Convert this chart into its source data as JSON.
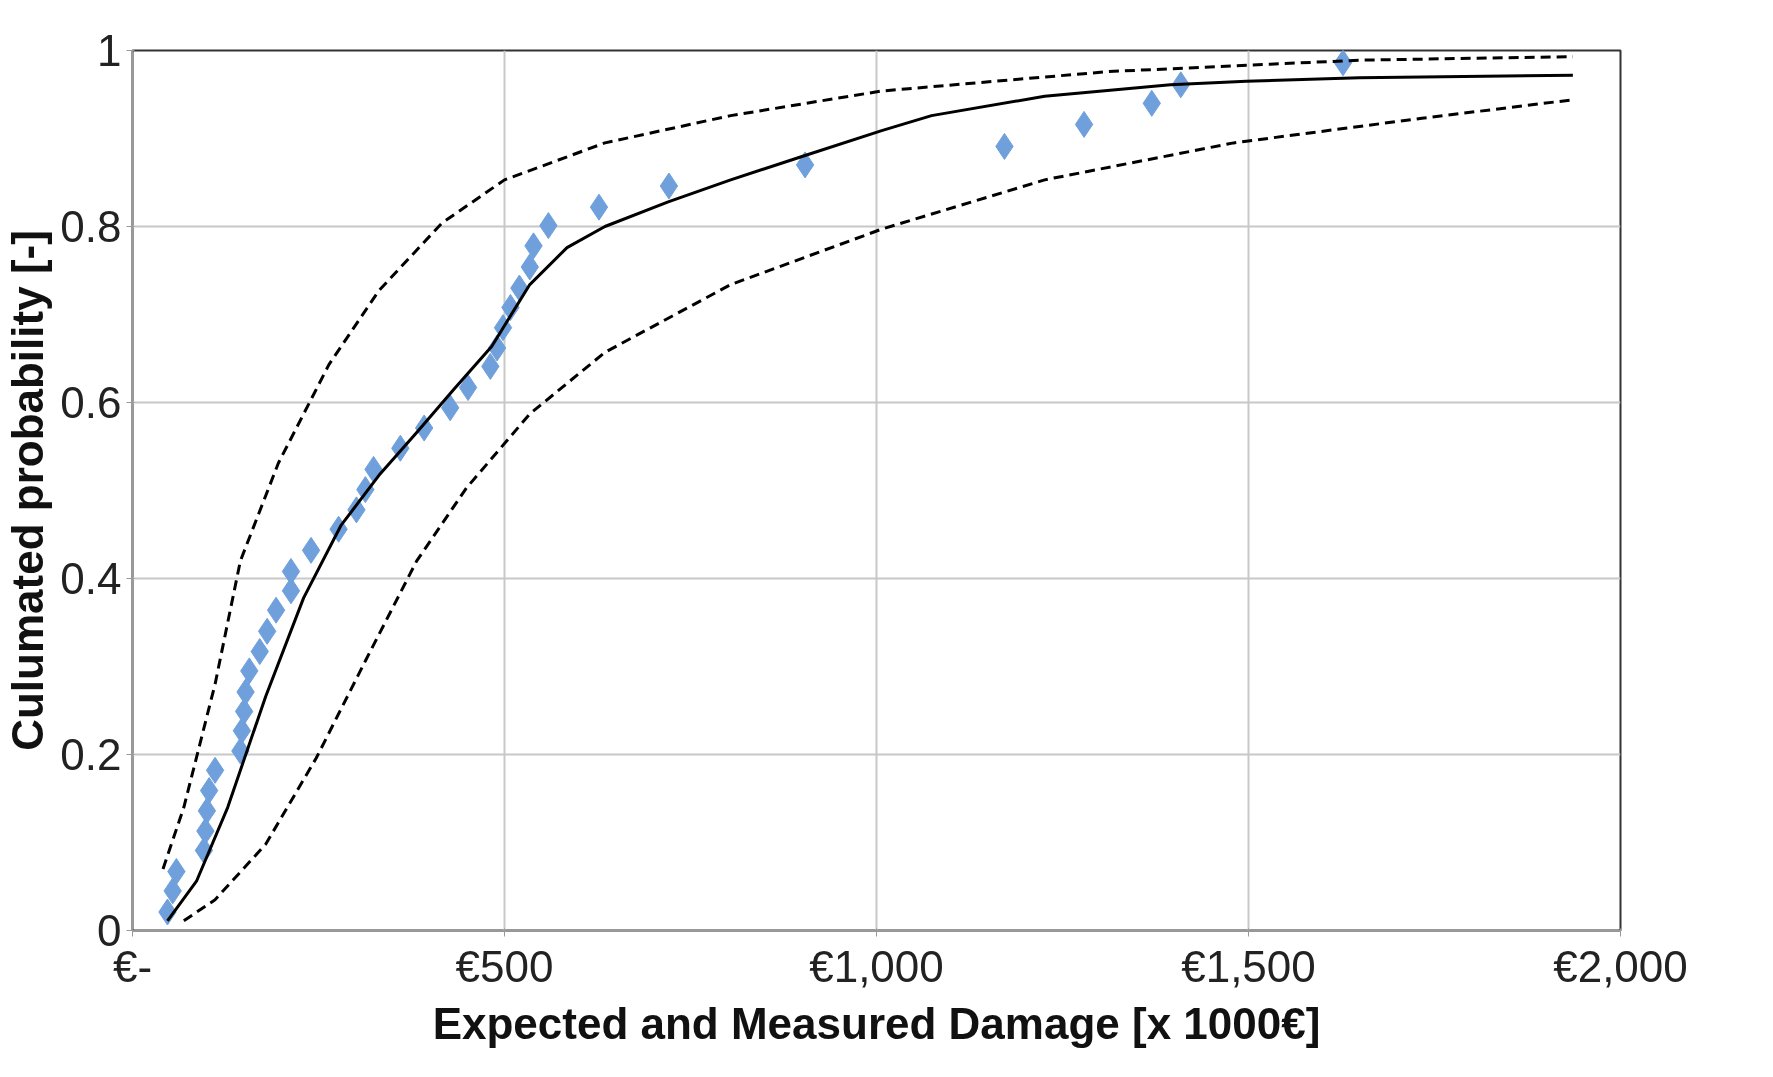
{
  "chart_data": {
    "type": "scatter",
    "xlabel": "Expected and Measured Damage [x 1000€]",
    "ylabel": "Culumated probability [-]",
    "xlim": [
      0,
      2000
    ],
    "xticks": [
      {
        "value": 0,
        "label": "€-"
      },
      {
        "value": 500,
        "label": "€500"
      },
      {
        "value": 1000,
        "label": "€1,000"
      },
      {
        "value": 1500,
        "label": "€1,500"
      },
      {
        "value": 2000,
        "label": "€2,000"
      }
    ],
    "ylim": [
      0,
      1
    ],
    "yticks": [
      0,
      0.2,
      0.4,
      0.6,
      0.8,
      1
    ],
    "grid": true,
    "series": [
      {
        "type": "line",
        "color": "#000000",
        "line_style": "solid",
        "marker": "none",
        "x": [
          47,
          86,
          128,
          179,
          230,
          280,
          331,
          382,
          432,
          483,
          534,
          584,
          635,
          720,
          804,
          905,
          1007,
          1074,
          1226,
          1395,
          1497,
          1649,
          1936
        ],
        "values": [
          0.011,
          0.056,
          0.14,
          0.266,
          0.378,
          0.46,
          0.517,
          0.566,
          0.615,
          0.664,
          0.734,
          0.776,
          0.8,
          0.828,
          0.853,
          0.881,
          0.909,
          0.926,
          0.948,
          0.961,
          0.965,
          0.969,
          0.972
        ]
      },
      {
        "type": "line",
        "color": "#000000",
        "line_style": "dashed",
        "marker": "none",
        "x": [
          41,
          69,
          111,
          145,
          196,
          264,
          331,
          416,
          500,
          635,
          804,
          1007,
          1311,
          1649,
          1936
        ],
        "values": [
          0.07,
          0.14,
          0.28,
          0.42,
          0.531,
          0.643,
          0.727,
          0.804,
          0.853,
          0.895,
          0.926,
          0.954,
          0.976,
          0.989,
          0.993
        ]
      },
      {
        "type": "line",
        "color": "#000000",
        "line_style": "dashed",
        "marker": "none",
        "x": [
          69,
          111,
          179,
          247,
          314,
          382,
          449,
          534,
          635,
          804,
          1007,
          1226,
          1480,
          1733,
          1936
        ],
        "values": [
          0.011,
          0.035,
          0.098,
          0.196,
          0.308,
          0.42,
          0.503,
          0.587,
          0.657,
          0.734,
          0.797,
          0.853,
          0.895,
          0.923,
          0.944
        ]
      },
      {
        "color": "#6fa0dc",
        "marker": "diamond",
        "x": [
          47,
          54,
          59,
          96,
          98,
          100,
          103,
          111,
          145,
          147,
          150,
          152,
          157,
          171,
          181,
          193,
          213,
          213,
          240,
          277,
          301,
          313,
          324,
          360,
          392,
          427,
          451,
          481,
          490,
          498,
          508,
          520,
          534,
          539,
          559,
          627,
          721,
          904,
          1172,
          1279,
          1370,
          1409,
          1627
        ],
        "values": [
          0.021,
          0.045,
          0.067,
          0.091,
          0.113,
          0.136,
          0.159,
          0.182,
          0.204,
          0.227,
          0.249,
          0.271,
          0.295,
          0.317,
          0.34,
          0.364,
          0.386,
          0.408,
          0.432,
          0.456,
          0.478,
          0.501,
          0.524,
          0.548,
          0.571,
          0.594,
          0.617,
          0.641,
          0.662,
          0.685,
          0.708,
          0.73,
          0.754,
          0.778,
          0.801,
          0.822,
          0.846,
          0.87,
          0.891,
          0.916,
          0.94,
          0.961,
          0.986
        ]
      }
    ]
  }
}
